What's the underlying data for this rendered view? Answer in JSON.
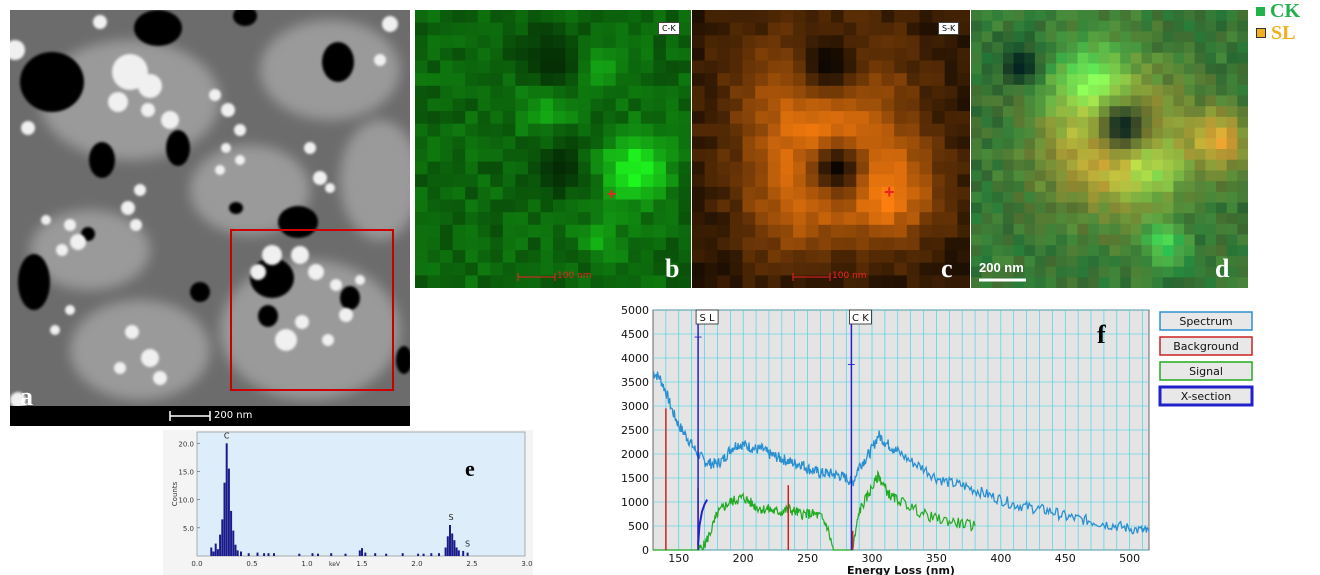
{
  "panels": {
    "a": {
      "label": "a",
      "scale": "200 nm"
    },
    "b": {
      "label": "b",
      "chip": "C-K",
      "scale": "100 nm",
      "color": "#1fd82a"
    },
    "c": {
      "label": "c",
      "chip": "S-K",
      "scale": "100 nm",
      "color": "#e07f12"
    },
    "d": {
      "label": "d",
      "scale": "200 nm"
    },
    "e": {
      "label": "e"
    },
    "f": {
      "label": "f"
    }
  },
  "top_legend": [
    {
      "label": "CK",
      "color": "#22b14c"
    },
    {
      "label": "SL",
      "color": "#f0b020"
    }
  ],
  "chart_data": [
    {
      "type": "bar",
      "panel": "e",
      "ylabel": "Counts",
      "xlabel": "keV",
      "xlim": [
        0.0,
        3.0
      ],
      "ylim": [
        0,
        22
      ],
      "xticks": [
        "0.0",
        "0.5",
        "1.0",
        "1.5",
        "2.0",
        "2.5",
        "3.0"
      ],
      "yticks": [
        "5.0",
        "10.0",
        "15.0",
        "20.0"
      ],
      "peak_labels": [
        {
          "text": "C",
          "x": 0.27,
          "y": 20.5
        },
        {
          "text": "S",
          "x": 2.31,
          "y": 6.0
        },
        {
          "text": "S",
          "x": 2.46,
          "y": 1.3
        }
      ],
      "x": [
        0.13,
        0.15,
        0.17,
        0.19,
        0.21,
        0.23,
        0.25,
        0.27,
        0.29,
        0.31,
        0.33,
        0.35,
        0.37,
        0.4,
        0.47,
        0.55,
        0.61,
        0.65,
        0.7,
        0.93,
        1.05,
        1.1,
        1.22,
        1.35,
        1.48,
        1.5,
        1.53,
        1.62,
        1.72,
        1.87,
        2.01,
        2.06,
        2.13,
        2.2,
        2.26,
        2.28,
        2.3,
        2.32,
        2.34,
        2.36,
        2.38,
        2.42,
        2.46
      ],
      "values": [
        1.5,
        0.8,
        2.2,
        1.2,
        3.8,
        6.5,
        13.0,
        20.0,
        15.5,
        8.0,
        4.5,
        2.0,
        1.0,
        0.8,
        0.5,
        0.6,
        0.5,
        0.5,
        0.5,
        0.4,
        0.5,
        0.4,
        0.5,
        0.4,
        1.0,
        1.4,
        0.6,
        0.5,
        0.4,
        0.5,
        0.4,
        0.4,
        0.5,
        0.5,
        1.5,
        3.5,
        5.5,
        4.0,
        2.8,
        1.5,
        1.0,
        0.9,
        0.6
      ]
    },
    {
      "type": "line",
      "panel": "f",
      "xlabel": "Energy Loss (nm)",
      "xlim": [
        130,
        515
      ],
      "ylim": [
        0,
        5000
      ],
      "xticks": [
        150,
        200,
        250,
        300,
        350,
        400,
        450,
        500
      ],
      "yticks": [
        0,
        500,
        1000,
        1500,
        2000,
        2500,
        3000,
        3500,
        4000,
        4500,
        5000
      ],
      "edge_markers": [
        {
          "label": "S L",
          "x": 165,
          "y": 4450
        },
        {
          "label": "C K",
          "x": 284,
          "y": 3870
        }
      ],
      "legend": [
        {
          "label": "Spectrum",
          "color": "#2a8fd0"
        },
        {
          "label": "Background",
          "color": "#cc2222"
        },
        {
          "label": "Signal",
          "color": "#22aa22"
        },
        {
          "label": "X-section",
          "color": "#2222cc"
        }
      ],
      "series": [
        {
          "name": "Spectrum",
          "color": "#2a8fd0",
          "x": [
            130,
            135,
            140,
            145,
            150,
            155,
            160,
            165,
            170,
            175,
            180,
            185,
            190,
            195,
            200,
            205,
            210,
            215,
            220,
            225,
            230,
            235,
            240,
            245,
            250,
            255,
            260,
            265,
            270,
            275,
            280,
            285,
            290,
            295,
            300,
            305,
            310,
            315,
            320,
            330,
            340,
            350,
            360,
            370,
            380,
            390,
            400,
            410,
            420,
            430,
            440,
            450,
            460,
            470,
            480,
            490,
            500,
            510,
            515
          ],
          "y": [
            3700,
            3600,
            3300,
            2900,
            2600,
            2400,
            2200,
            2000,
            1850,
            1800,
            1800,
            1900,
            2100,
            2200,
            2200,
            2150,
            2100,
            2100,
            2000,
            1950,
            1900,
            1850,
            1800,
            1800,
            1700,
            1650,
            1600,
            1600,
            1580,
            1550,
            1500,
            1400,
            1750,
            1900,
            2100,
            2400,
            2250,
            2150,
            2050,
            1850,
            1700,
            1500,
            1400,
            1350,
            1250,
            1150,
            1050,
            950,
            900,
            850,
            800,
            700,
            650,
            600,
            550,
            500,
            450,
            400,
            380
          ]
        },
        {
          "name": "Signal",
          "color": "#22aa22",
          "x": [
            130,
            140,
            145,
            150,
            155,
            160,
            165,
            170,
            175,
            180,
            185,
            190,
            195,
            200,
            205,
            210,
            215,
            220,
            225,
            230,
            235,
            240,
            245,
            250,
            255,
            260,
            265,
            270,
            275,
            280,
            285,
            290,
            295,
            300,
            305,
            310,
            315,
            320,
            330,
            340,
            350,
            360,
            370,
            380
          ],
          "y": [
            0,
            0,
            0,
            0,
            0,
            0,
            0,
            100,
            400,
            750,
            900,
            1000,
            1050,
            1100,
            1000,
            900,
            850,
            850,
            800,
            800,
            850,
            800,
            750,
            750,
            750,
            700,
            500,
            0,
            0,
            0,
            0,
            800,
            1050,
            1300,
            1550,
            1300,
            1100,
            1050,
            900,
            750,
            650,
            600,
            550,
            500
          ]
        },
        {
          "name": "Background",
          "color": "#cc2222",
          "x": [
            140,
            165,
            235,
            285
          ],
          "y": [
            2950,
            1300,
            1350,
            400
          ]
        },
        {
          "name": "X-section",
          "color": "#2222cc",
          "x": [
            165,
            166,
            168,
            170,
            172
          ],
          "y": [
            100,
            500,
            800,
            950,
            1050
          ]
        }
      ]
    }
  ]
}
